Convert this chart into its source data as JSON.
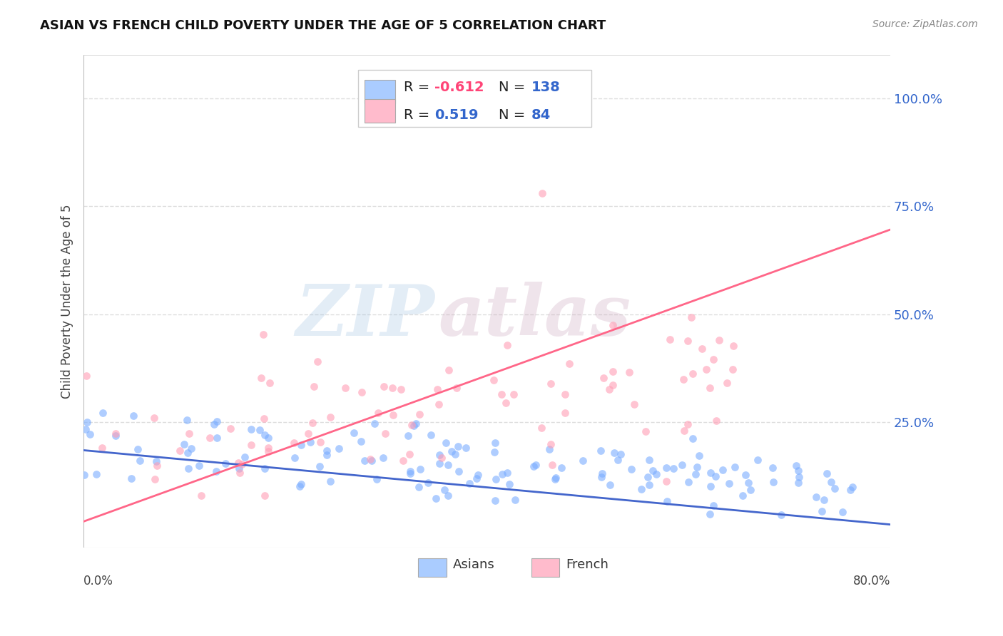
{
  "title": "ASIAN VS FRENCH CHILD POVERTY UNDER THE AGE OF 5 CORRELATION CHART",
  "source": "Source: ZipAtlas.com",
  "ylabel": "Child Poverty Under the Age of 5",
  "ytick_labels": [
    "100.0%",
    "75.0%",
    "50.0%",
    "25.0%"
  ],
  "ytick_positions": [
    1.0,
    0.75,
    0.5,
    0.25
  ],
  "xlim": [
    0.0,
    0.8
  ],
  "ylim": [
    -0.04,
    1.1
  ],
  "asian_color": "#7AADFF",
  "french_color": "#FF9EB5",
  "asian_line_color": "#4466CC",
  "french_line_color": "#FF6688",
  "legend_asian_color": "#AACCFF",
  "legend_french_color": "#FFBBCC",
  "asian_R": -0.612,
  "asian_N": 138,
  "french_R": 0.519,
  "french_N": 84,
  "asian_intercept": 0.185,
  "asian_slope": -0.215,
  "french_intercept": 0.02,
  "french_slope": 0.845,
  "watermark_zip": "ZIP",
  "watermark_atlas": "atlas",
  "background_color": "#FFFFFF",
  "grid_color": "#DDDDDD",
  "r_color_negative": "#FF4477",
  "r_color_positive": "#3366CC",
  "n_color": "#3366CC"
}
